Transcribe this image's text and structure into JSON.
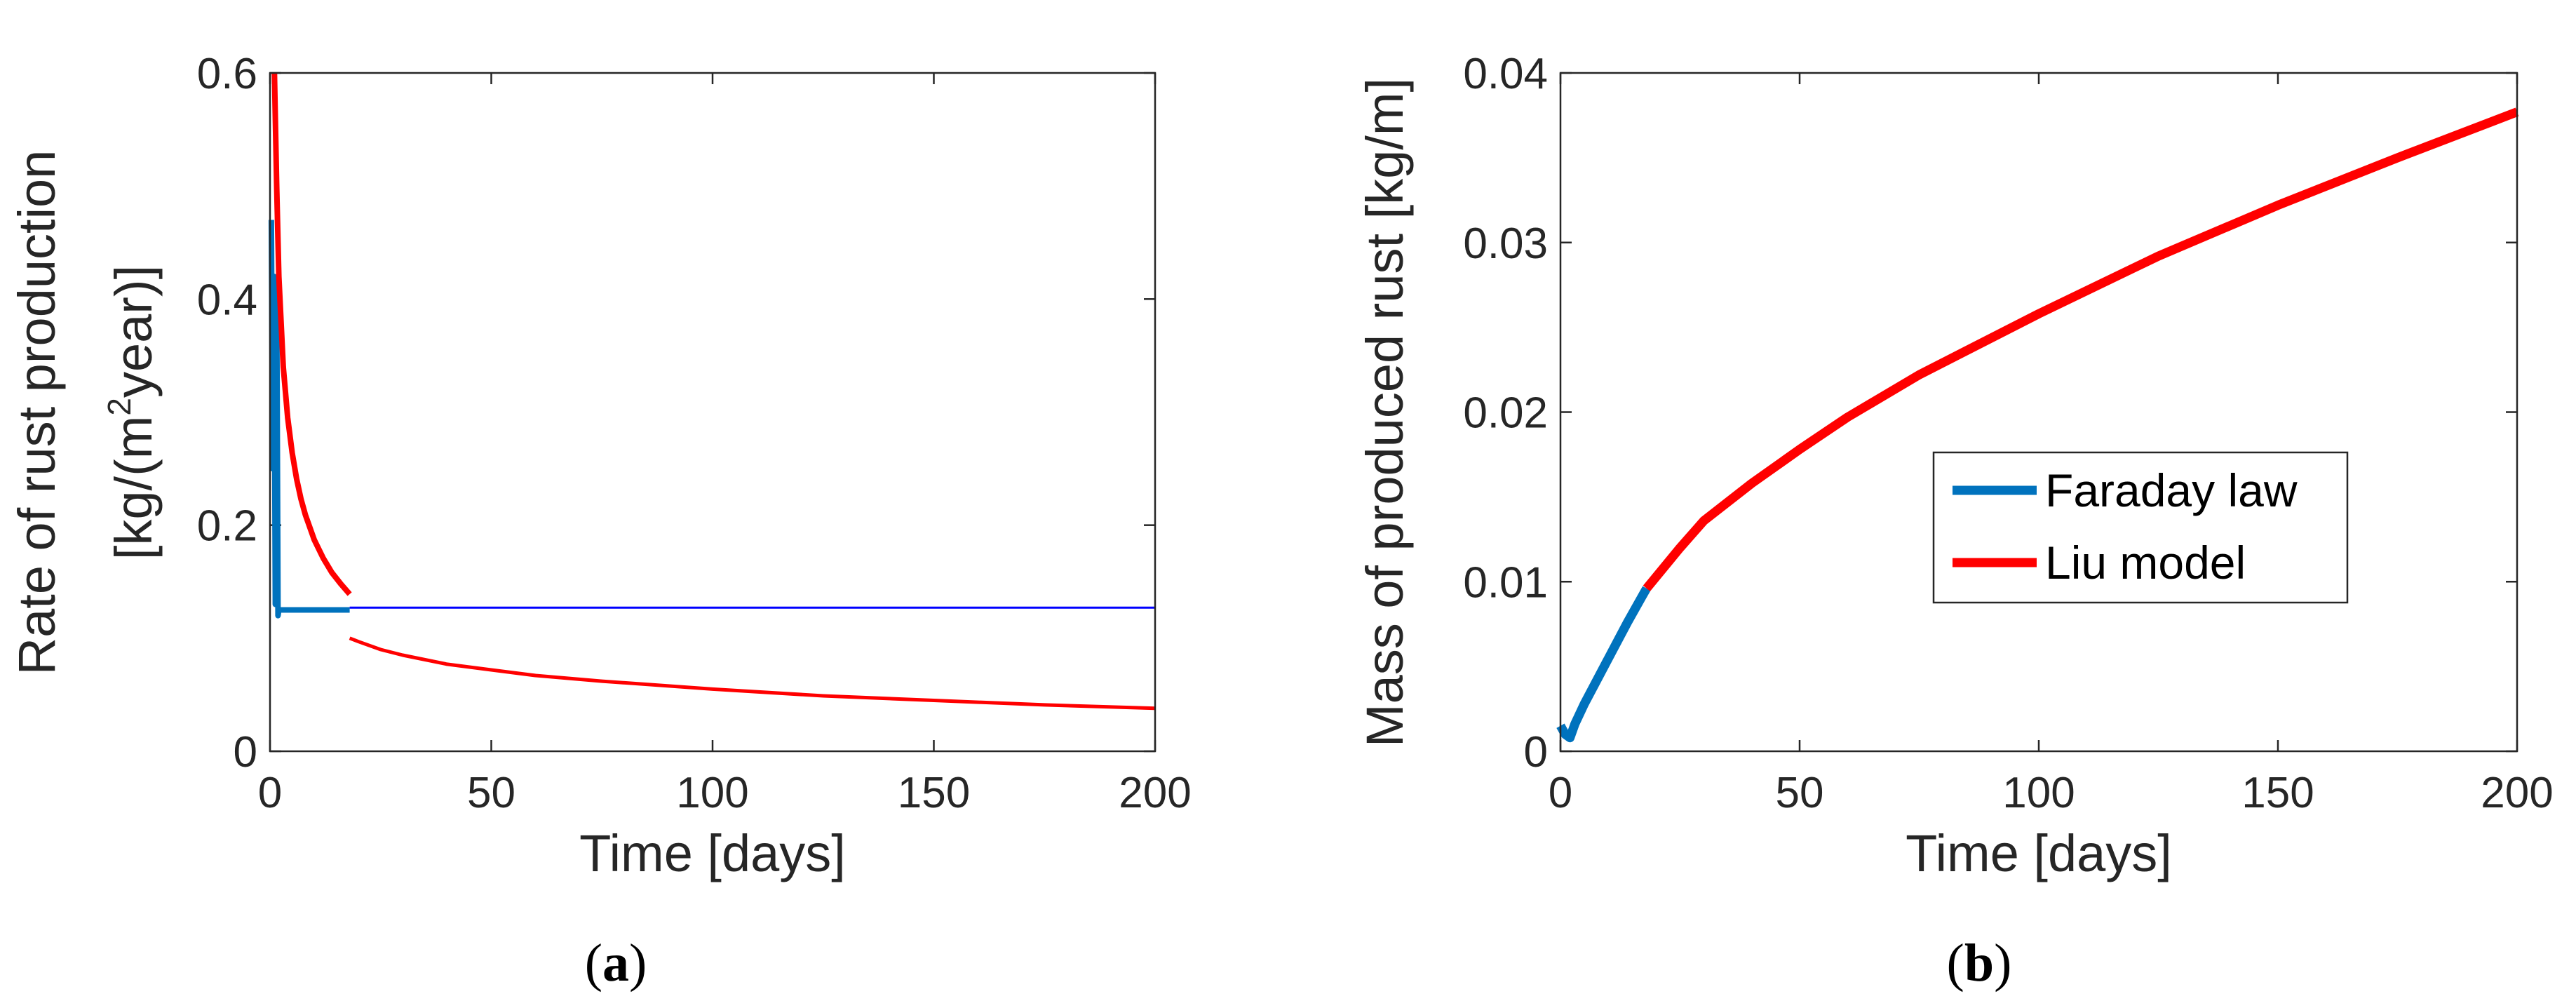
{
  "chart_data": [
    {
      "type": "line",
      "caption_prefix": "(",
      "caption_letter": "a",
      "caption_suffix": ")",
      "xlabel": "Time [days]",
      "ylabel_line1": "Rate of rust production",
      "ylabel_line2_pre": "[kg/(m",
      "ylabel_line2_sup": "2",
      "ylabel_line2_post": "year)]",
      "xlim": [
        0,
        200
      ],
      "ylim": [
        0,
        0.6
      ],
      "xticks": [
        0,
        50,
        100,
        150,
        200
      ],
      "yticks": [
        0,
        0.2,
        0.4,
        0.6
      ],
      "xtick_labels": [
        "0",
        "50",
        "100",
        "150",
        "200"
      ],
      "ytick_labels": [
        "0",
        "0.2",
        "0.4",
        "0.6"
      ],
      "series": [
        {
          "color": "#0072BD",
          "x": [
            0.3,
            0.6,
            0.9,
            1.2,
            1.5,
            1.8,
            2.0,
            4,
            8,
            12,
            16,
            18
          ],
          "y": [
            0.47,
            0.25,
            0.42,
            0.13,
            0.41,
            0.12,
            0.125,
            0.125,
            0.125,
            0.125,
            0.125,
            0.125
          ]
        },
        {
          "color": "#0000FF",
          "x": [
            18,
            50,
            100,
            150,
            200
          ],
          "y": [
            0.127,
            0.127,
            0.127,
            0.127,
            0.127
          ]
        },
        {
          "color": "#FF0000",
          "x": [
            1.0,
            1.5,
            2,
            3,
            4,
            5,
            6,
            7,
            8,
            10,
            12,
            14,
            16,
            18
          ],
          "y": [
            0.6,
            0.5,
            0.42,
            0.34,
            0.295,
            0.264,
            0.241,
            0.223,
            0.209,
            0.187,
            0.171,
            0.158,
            0.148,
            0.139
          ]
        },
        {
          "color": "#FF0000",
          "x": [
            18,
            20,
            25,
            30,
            40,
            50,
            60,
            75,
            100,
            125,
            150,
            175,
            200
          ],
          "y": [
            0.1,
            0.097,
            0.09,
            0.085,
            0.077,
            0.072,
            0.067,
            0.062,
            0.055,
            0.049,
            0.045,
            0.041,
            0.038
          ]
        }
      ]
    },
    {
      "type": "line",
      "caption_prefix": "(",
      "caption_letter": "b",
      "caption_suffix": ")",
      "xlabel": "Time [days]",
      "ylabel": "Mass of produced rust [kg/m]",
      "xlim": [
        0,
        200
      ],
      "ylim": [
        0,
        0.04
      ],
      "xticks": [
        0,
        50,
        100,
        150,
        200
      ],
      "yticks": [
        0,
        0.01,
        0.02,
        0.03,
        0.04
      ],
      "xtick_labels": [
        "0",
        "50",
        "100",
        "150",
        "200"
      ],
      "ytick_labels": [
        "0",
        "0.01",
        "0.02",
        "0.03",
        "0.04"
      ],
      "legend_position": "center-right",
      "series": [
        {
          "name": "Faraday law",
          "color": "#0072BD",
          "x": [
            0,
            1,
            2,
            3,
            5,
            8,
            11,
            14,
            17,
            18
          ],
          "y": [
            0.0015,
            0.001,
            0.0008,
            0.0016,
            0.0028,
            0.0044,
            0.006,
            0.0076,
            0.0091,
            0.0096
          ]
        },
        {
          "name": "Liu model",
          "color": "#FF0000",
          "x": [
            18,
            25,
            30,
            40,
            50,
            60,
            75,
            100,
            125,
            150,
            175,
            200
          ],
          "y": [
            0.0096,
            0.012,
            0.0136,
            0.0158,
            0.0178,
            0.0197,
            0.0222,
            0.0258,
            0.0292,
            0.0322,
            0.035,
            0.0377
          ]
        }
      ]
    }
  ]
}
